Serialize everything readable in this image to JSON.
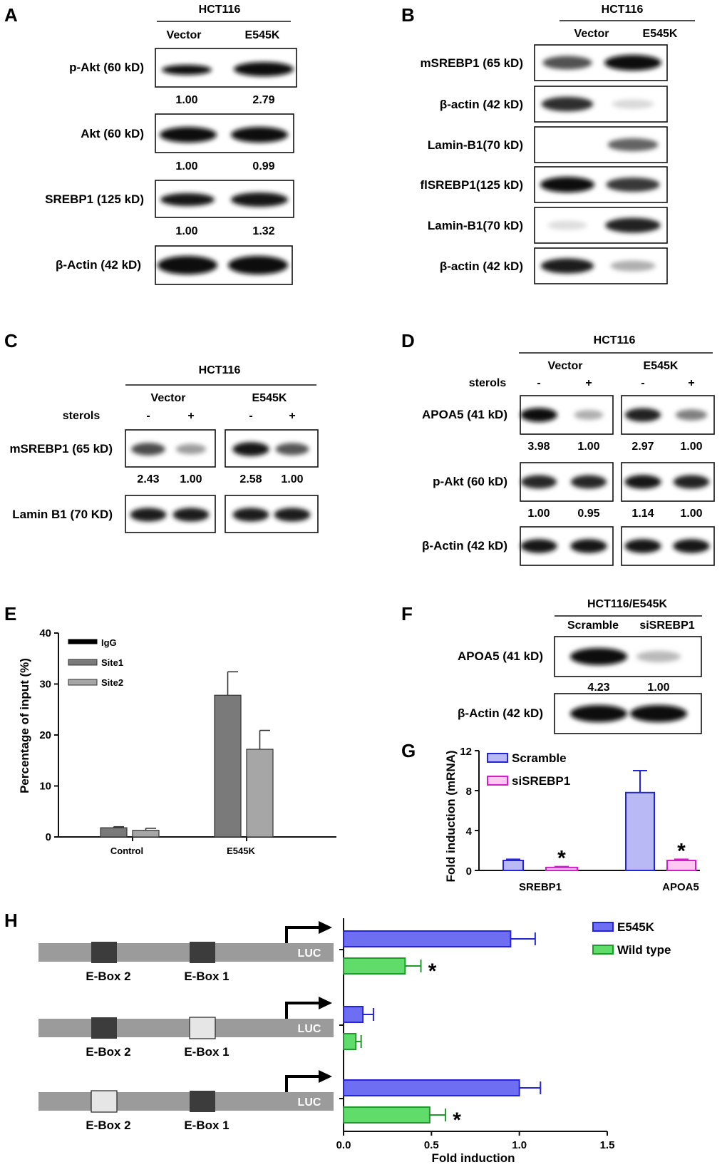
{
  "panels": {
    "A": "A",
    "B": "B",
    "C": "C",
    "D": "D",
    "E": "E",
    "F": "F",
    "G": "G",
    "H": "H"
  },
  "cell_line": "HCT116",
  "cell_line_f": "HCT116/E545K",
  "cond": {
    "vector": "Vector",
    "e545k": "E545K",
    "sterols": "sterols",
    "minus": "-",
    "plus": "+",
    "scramble": "Scramble",
    "sisrebp1": "siSREBP1"
  },
  "panelA": {
    "rows": [
      {
        "label": "p-Akt (60 kD)",
        "values": [
          "1.00",
          "2.79"
        ],
        "intensity": [
          0.72,
          1.0
        ]
      },
      {
        "label": "Akt (60 kD)",
        "values": [
          "1.00",
          "0.99"
        ],
        "intensity": [
          1.0,
          0.98
        ]
      },
      {
        "label": "SREBP1 (125 kD)",
        "values": [
          "1.00",
          "1.32"
        ],
        "intensity": [
          0.8,
          0.92
        ]
      },
      {
        "label": "β-Actin (42 kD)",
        "values": [],
        "intensity": [
          1.0,
          1.0
        ]
      }
    ]
  },
  "panelB": {
    "rows": [
      {
        "label": "mSREBP1 (65 kD)",
        "intensity": [
          0.7,
          1.0
        ]
      },
      {
        "label": "β-actin (42 kD)",
        "intensity": [
          0.85,
          0.12
        ]
      },
      {
        "label": "Lamin-B1(70 kD)",
        "intensity": [
          0.0,
          0.62
        ]
      },
      {
        "label": "flSREBP1(125 kD)",
        "intensity": [
          1.0,
          0.8
        ]
      },
      {
        "label": "Lamin-B1(70 kD)",
        "intensity": [
          0.1,
          0.9
        ]
      },
      {
        "label": "β-actin (42 kD)",
        "intensity": [
          0.92,
          0.3
        ]
      }
    ]
  },
  "panelC": {
    "rows": [
      {
        "label": "mSREBP1 (65 kD)",
        "values": [
          "2.43",
          "1.00",
          "2.58",
          "1.00"
        ],
        "intensity": [
          0.72,
          0.38,
          0.95,
          0.68
        ]
      },
      {
        "label": "Lamin B1 (70 KD)",
        "values": [],
        "intensity": [
          0.92,
          0.92,
          0.92,
          0.92
        ]
      }
    ]
  },
  "panelD": {
    "rows": [
      {
        "label": "APOA5 (41 kD)",
        "values": [
          "3.98",
          "1.00",
          "2.97",
          "1.00"
        ],
        "intensity": [
          0.98,
          0.3,
          0.9,
          0.5
        ]
      },
      {
        "label": "p-Akt (60 kD)",
        "values": [
          "1.00",
          "0.95",
          "1.14",
          "1.00"
        ],
        "intensity": [
          0.88,
          0.88,
          0.95,
          0.9
        ]
      },
      {
        "label": "β-Actin (42 kD)",
        "values": [],
        "intensity": [
          0.95,
          0.95,
          0.95,
          0.95
        ]
      }
    ]
  },
  "panelF": {
    "rows": [
      {
        "label": "APOA5 (41 kD)",
        "values": [
          "4.23",
          "1.00"
        ],
        "intensity": [
          1.0,
          0.25
        ]
      },
      {
        "label": "β-Actin (42 kD)",
        "values": [],
        "intensity": [
          1.0,
          1.0
        ]
      }
    ]
  },
  "colors": {
    "e545k": "#6e6ef2",
    "wild_type": "#5fdc6a",
    "scramble": "#b9b9f5",
    "sisrebp1": "#ffc8f2",
    "scramble_edge": "#2424d8",
    "sisrebp1_edge": "#d11fc8",
    "wt_edge": "#1f9a2d",
    "e545k_edge": "#2424d8",
    "site1": "#7a7a7a",
    "site2": "#a6a6a6",
    "igg": "#000000"
  },
  "chart_data": [
    {
      "type": "bar",
      "id": "E",
      "categories": [
        "Control",
        "E545K"
      ],
      "ylabel": "Percentage of input (%)",
      "ylim": [
        0,
        40
      ],
      "yticks": [
        "0",
        "10",
        "20",
        "30",
        "40"
      ],
      "legend": "top-left",
      "series": [
        {
          "name": "IgG",
          "values": [
            0,
            0
          ],
          "errors": [
            0,
            0
          ]
        },
        {
          "name": "Site1",
          "values": [
            1.8,
            27.8
          ],
          "errors": [
            0.2,
            4.6
          ]
        },
        {
          "name": "Site2",
          "values": [
            1.3,
            17.2
          ],
          "errors": [
            0.4,
            3.7
          ]
        }
      ]
    },
    {
      "type": "bar",
      "id": "G",
      "categories": [
        "SREBP1",
        "APOA5"
      ],
      "ylabel": "Fold induction (mRNA)",
      "ylim": [
        0,
        12
      ],
      "yticks": [
        "0",
        "4",
        "8",
        "12"
      ],
      "legend": "top-left",
      "significance": "*",
      "series": [
        {
          "name": "Scramble",
          "values": [
            1.0,
            7.8
          ],
          "errors": [
            0.12,
            2.2
          ]
        },
        {
          "name": "siSREBP1",
          "values": [
            0.3,
            1.0
          ],
          "errors": [
            0.08,
            0.12
          ]
        }
      ]
    },
    {
      "type": "bar",
      "id": "H",
      "orientation": "horizontal",
      "xlabel": "Fold induction",
      "xlim": [
        0,
        1.5
      ],
      "xticks": [
        "0.0",
        "0.5",
        "1.0",
        "1.5"
      ],
      "legend": "top-right",
      "significance": "*",
      "constructs": [
        {
          "labels": [
            "E-Box 2",
            "E-Box 1"
          ],
          "box2": "intact",
          "box1": "intact",
          "luc": "LUC"
        },
        {
          "labels": [
            "E-Box 2",
            "E-Box 1"
          ],
          "box2": "intact",
          "box1": "mutated",
          "luc": "LUC"
        },
        {
          "labels": [
            "E-Box 2",
            "E-Box 1"
          ],
          "box2": "mutated",
          "box1": "intact",
          "luc": "LUC"
        }
      ],
      "series": [
        {
          "name": "E545K",
          "values": [
            0.95,
            0.11,
            1.0
          ],
          "errors": [
            0.14,
            0.06,
            0.12
          ]
        },
        {
          "name": "Wild type",
          "values": [
            0.35,
            0.07,
            0.49
          ],
          "errors": [
            0.09,
            0.03,
            0.09
          ]
        }
      ]
    }
  ]
}
